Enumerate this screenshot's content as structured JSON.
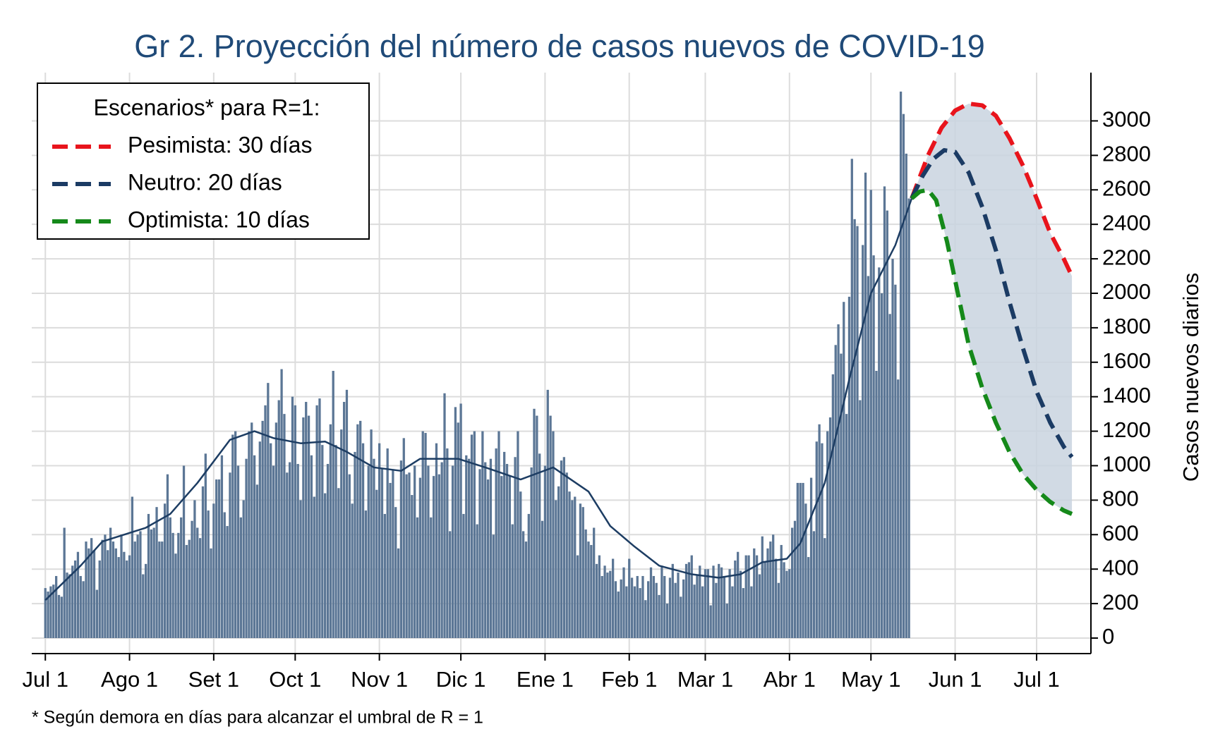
{
  "chart_data": {
    "type": "bar",
    "title": "Gr 2. Proyección del número de casos nuevos de COVID-19",
    "y_label": "Casos nuevos diarios",
    "footnote": "* Según demora en días para alcanzar el umbral de R = 1",
    "grid": true,
    "y_axis_side": "right",
    "xlim": [
      -5,
      385
    ],
    "ylim": [
      -90,
      3280
    ],
    "xticks": [
      {
        "value": 0,
        "label": "Jul 1"
      },
      {
        "value": 31,
        "label": "Ago 1"
      },
      {
        "value": 62,
        "label": "Set 1"
      },
      {
        "value": 92,
        "label": "Oct 1"
      },
      {
        "value": 123,
        "label": "Nov 1"
      },
      {
        "value": 153,
        "label": "Dic 1"
      },
      {
        "value": 184,
        "label": "Ene 1"
      },
      {
        "value": 215,
        "label": "Feb 1"
      },
      {
        "value": 243,
        "label": "Mar 1"
      },
      {
        "value": 274,
        "label": "Abr 1"
      },
      {
        "value": 304,
        "label": "May 1"
      },
      {
        "value": 335,
        "label": "Jun 1"
      },
      {
        "value": 365,
        "label": "Jul 1"
      }
    ],
    "yticks": [
      0,
      200,
      400,
      600,
      800,
      1000,
      1200,
      1400,
      1600,
      1800,
      2000,
      2200,
      2400,
      2600,
      2800,
      3000
    ],
    "legend": {
      "title": "Escenarios* para R=1:",
      "position": "upper left"
    },
    "band": {
      "color": "#c9d4df",
      "series": [
        2,
        4
      ]
    },
    "series": [
      {
        "type": "bar",
        "color": "#5b7695",
        "x": [
          0,
          1,
          2,
          3,
          4,
          5,
          6,
          7,
          8,
          9,
          10,
          11,
          12,
          13,
          14,
          15,
          16,
          17,
          18,
          19,
          20,
          21,
          22,
          23,
          24,
          25,
          26,
          27,
          28,
          29,
          30,
          31,
          32,
          33,
          34,
          35,
          36,
          37,
          38,
          39,
          40,
          41,
          42,
          43,
          44,
          45,
          46,
          47,
          48,
          49,
          50,
          51,
          52,
          53,
          54,
          55,
          56,
          57,
          58,
          59,
          60,
          61,
          62,
          63,
          64,
          65,
          66,
          67,
          68,
          69,
          70,
          71,
          72,
          73,
          74,
          75,
          76,
          77,
          78,
          79,
          80,
          81,
          82,
          83,
          84,
          85,
          86,
          87,
          88,
          89,
          90,
          91,
          92,
          93,
          94,
          95,
          96,
          97,
          98,
          99,
          100,
          101,
          102,
          103,
          104,
          105,
          106,
          107,
          108,
          109,
          110,
          111,
          112,
          113,
          114,
          115,
          116,
          117,
          118,
          119,
          120,
          121,
          122,
          123,
          124,
          125,
          126,
          127,
          128,
          129,
          130,
          131,
          132,
          133,
          134,
          135,
          136,
          137,
          138,
          139,
          140,
          141,
          142,
          143,
          144,
          145,
          146,
          147,
          148,
          149,
          150,
          151,
          152,
          153,
          154,
          155,
          156,
          157,
          158,
          159,
          160,
          161,
          162,
          163,
          164,
          165,
          166,
          167,
          168,
          169,
          170,
          171,
          172,
          173,
          174,
          175,
          176,
          177,
          178,
          179,
          180,
          181,
          182,
          183,
          184,
          185,
          186,
          187,
          188,
          189,
          190,
          191,
          192,
          193,
          194,
          195,
          196,
          197,
          198,
          199,
          200,
          201,
          202,
          203,
          204,
          205,
          206,
          207,
          208,
          209,
          210,
          211,
          212,
          213,
          214,
          215,
          216,
          217,
          218,
          219,
          220,
          221,
          222,
          223,
          224,
          225,
          226,
          227,
          228,
          229,
          230,
          231,
          232,
          233,
          234,
          235,
          236,
          237,
          238,
          239,
          240,
          241,
          242,
          243,
          244,
          245,
          246,
          247,
          248,
          249,
          250,
          251,
          252,
          253,
          254,
          255,
          256,
          257,
          258,
          259,
          260,
          261,
          262,
          263,
          264,
          265,
          266,
          267,
          268,
          269,
          270,
          271,
          272,
          273,
          274,
          275,
          276,
          277,
          278,
          279,
          280,
          281,
          282,
          283,
          284,
          285,
          286,
          287,
          288,
          289,
          290,
          291,
          292,
          293,
          294,
          295,
          296,
          297,
          298,
          299,
          300,
          301,
          302,
          303,
          304,
          305,
          306,
          307,
          308,
          309,
          310,
          311,
          312,
          313,
          314,
          315,
          316,
          317,
          318
        ],
        "values": [
          290,
          270,
          300,
          310,
          360,
          250,
          240,
          640,
          380,
          370,
          420,
          450,
          500,
          360,
          330,
          560,
          520,
          580,
          510,
          280,
          450,
          570,
          600,
          510,
          640,
          560,
          520,
          470,
          600,
          500,
          450,
          480,
          820,
          560,
          600,
          620,
          370,
          430,
          720,
          630,
          640,
          760,
          560,
          560,
          780,
          950,
          700,
          610,
          490,
          610,
          700,
          1000,
          540,
          570,
          680,
          800,
          640,
          580,
          880,
          1070,
          740,
          520,
          780,
          920,
          920,
          1060,
          730,
          650,
          960,
          1180,
          1200,
          1000,
          700,
          800,
          1040,
          1200,
          1250,
          1060,
          890,
          1140,
          1260,
          1350,
          1480,
          1130,
          1000,
          1250,
          1380,
          1560,
          1300,
          960,
          1020,
          1400,
          1350,
          1010,
          800,
          1280,
          1370,
          1290,
          1060,
          820,
          1350,
          1390,
          1120,
          840,
          1010,
          1240,
          1550,
          1120,
          870,
          1210,
          1370,
          1440,
          950,
          780,
          1080,
          1240,
          1260,
          1130,
          740,
          1000,
          1210,
          1040,
          860,
          1130,
          980,
          720,
          1100,
          900,
          980,
          760,
          520,
          1030,
          1160,
          950,
          960,
          830,
          1000,
          700,
          930,
          1200,
          1190,
          1000,
          700,
          940,
          1130,
          950,
          1020,
          1420,
          1100,
          620,
          1000,
          1340,
          1250,
          1360,
          720,
          1060,
          1040,
          1180,
          1200,
          660,
          980,
          1200,
          1020,
          920,
          1040,
          600,
          1100,
          1200,
          940,
          1080,
          1010,
          940,
          660,
          1050,
          1200,
          850,
          620,
          560,
          720,
          990,
          1330,
          1290,
          1070,
          680,
          1000,
          1440,
          1290,
          1200,
          800,
          880,
          1030,
          1050,
          960,
          850,
          800,
          820,
          480,
          780,
          760,
          630,
          560,
          540,
          640,
          430,
          480,
          360,
          420,
          380,
          390,
          460,
          330,
          270,
          340,
          410,
          300,
          460,
          350,
          300,
          360,
          290,
          360,
          220,
          330,
          410,
          360,
          320,
          250,
          420,
          360,
          200,
          350,
          430,
          320,
          380,
          240,
          340,
          430,
          440,
          480,
          310,
          370,
          420,
          300,
          400,
          400,
          190,
          420,
          320,
          430,
          410,
          360,
          200,
          400,
          300,
          450,
          500,
          390,
          290,
          480,
          480,
          300,
          520,
          480,
          370,
          590,
          440,
          520,
          560,
          600,
          460,
          320,
          540,
          440,
          390,
          400,
          640,
          680,
          900,
          900,
          900,
          780,
          470,
          930,
          620,
          1140,
          1240,
          1130,
          580,
          1200,
          1280,
          1530,
          1700,
          1820,
          1650,
          1950,
          1300,
          1980,
          2780,
          2430,
          2390,
          1380,
          2280,
          2700,
          2100,
          2600,
          2220,
          1550,
          2150,
          2000,
          2620,
          2480,
          1880,
          2200,
          2050,
          1500,
          3170,
          3040,
          2810,
          2550
        ]
      },
      {
        "type": "line",
        "color": "#1d3d63",
        "x": [
          0,
          13,
          21,
          37,
          46,
          56,
          68,
          77,
          84,
          94,
          103,
          111,
          121,
          131,
          138,
          152,
          162,
          175,
          187,
          200,
          208,
          217,
          226,
          238,
          248,
          256,
          264,
          273,
          278,
          287,
          296,
          304,
          313,
          319
        ],
        "values": [
          220,
          420,
          560,
          640,
          720,
          900,
          1150,
          1200,
          1160,
          1130,
          1140,
          1080,
          990,
          970,
          1040,
          1040,
          990,
          920,
          990,
          850,
          650,
          530,
          420,
          370,
          350,
          370,
          440,
          460,
          550,
          900,
          1500,
          2000,
          2280,
          2550
        ]
      },
      {
        "type": "line",
        "name": "Pesimista: 30 días",
        "color": "#e8141c",
        "dashed": true,
        "x": [
          319,
          325,
          330,
          335,
          340,
          345,
          350,
          355,
          360,
          365,
          370,
          375,
          378
        ],
        "values": [
          2550,
          2800,
          2960,
          3060,
          3100,
          3090,
          3030,
          2900,
          2740,
          2550,
          2350,
          2200,
          2100
        ]
      },
      {
        "type": "line",
        "name": "Neutro: 20 días",
        "color": "#1b3b64",
        "dashed": true,
        "x": [
          319,
          323,
          327,
          331,
          335,
          340,
          345,
          350,
          355,
          360,
          365,
          370,
          375,
          378
        ],
        "values": [
          2550,
          2680,
          2780,
          2830,
          2820,
          2700,
          2500,
          2250,
          1950,
          1680,
          1430,
          1250,
          1110,
          1050
        ]
      },
      {
        "type": "line",
        "name": "Optimista: 10 días",
        "color": "#15891a",
        "dashed": true,
        "x": [
          319,
          322,
          325,
          328,
          332,
          336,
          340,
          345,
          350,
          355,
          360,
          365,
          370,
          375,
          378
        ],
        "values": [
          2550,
          2590,
          2600,
          2540,
          2300,
          2000,
          1700,
          1450,
          1250,
          1080,
          950,
          860,
          790,
          740,
          720
        ]
      }
    ]
  }
}
